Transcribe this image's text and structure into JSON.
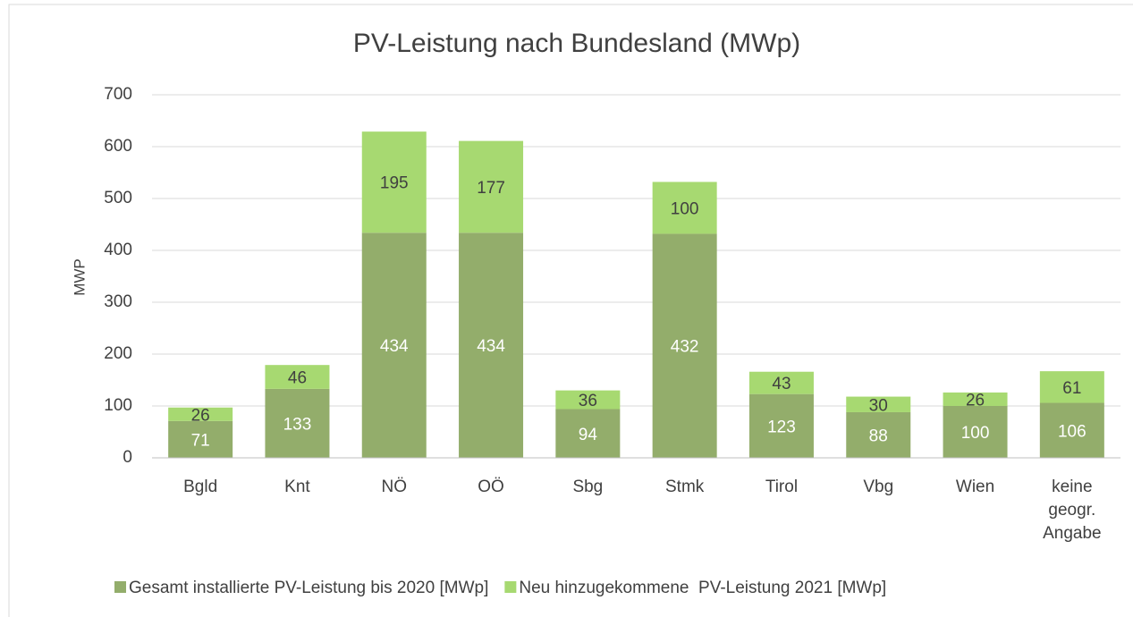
{
  "chart_data": {
    "type": "stacked_bar",
    "title": "PV-Leistung nach Bundesland (MWp)",
    "y_label": "MWP",
    "categories": [
      "Bgld",
      "Knt",
      "NÖ",
      "OÖ",
      "Sbg",
      "Stmk",
      "Tirol",
      "Vbg",
      "Wien",
      "keine geogr. Angabe"
    ],
    "series": [
      {
        "name": "Gesamt installierte PV-Leistung bis 2020 [MWp]",
        "color": "#93ad6b",
        "values": [
          71,
          133,
          434,
          434,
          94,
          432,
          123,
          88,
          100,
          106
        ]
      },
      {
        "name": "Neu hinzugekommene  PV-Leistung 2021 [MWp]",
        "color": "#a7d971",
        "values": [
          26,
          46,
          195,
          177,
          36,
          100,
          43,
          30,
          26,
          61
        ]
      }
    ],
    "ylim": [
      0,
      700
    ],
    "yticks": [
      0,
      100,
      200,
      300,
      400,
      500,
      600,
      700
    ],
    "grid": true,
    "legend": "bottom"
  }
}
